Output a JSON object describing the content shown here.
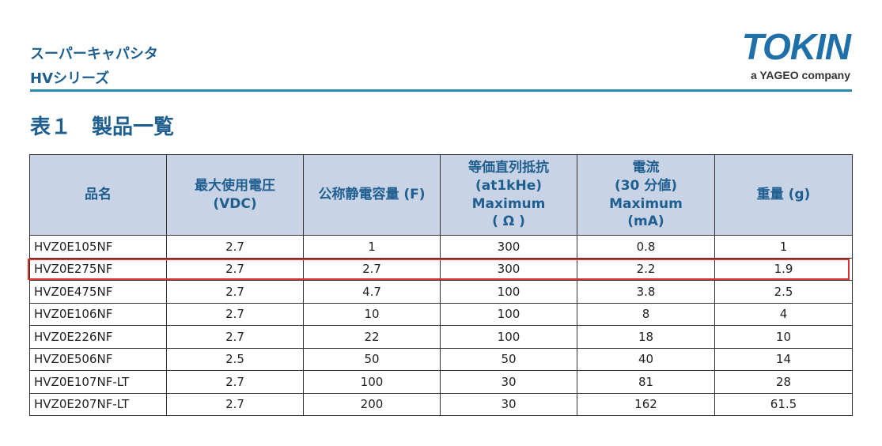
{
  "header": {
    "category": "スーパーキャパシタ",
    "series": "HVシリーズ",
    "logo_main": "TOKIN",
    "logo_sub": "a YAGEO company"
  },
  "table_title": "表１　製品一覧",
  "table": {
    "columns": [
      "品名",
      "最大使用電圧\n(VDC)",
      "公称静電容量 (F)",
      "等価直列抵抗\n(at1kHe)\nMaximum\n( Ω )",
      "電流\n(30 分値)\nMaximum\n(mA)",
      "重量 (g)"
    ],
    "rows": [
      [
        "HVZ0E105NF",
        "2.7",
        "1",
        "300",
        "0.8",
        "1"
      ],
      [
        "HVZ0E275NF",
        "2.7",
        "2.7",
        "300",
        "2.2",
        "1.9"
      ],
      [
        "HVZ0E475NF",
        "2.7",
        "4.7",
        "100",
        "3.8",
        "2.5"
      ],
      [
        "HVZ0E106NF",
        "2.7",
        "10",
        "100",
        "8",
        "4"
      ],
      [
        "HVZ0E226NF",
        "2.7",
        "22",
        "100",
        "18",
        "10"
      ],
      [
        "HVZ0E506NF",
        "2.5",
        "50",
        "50",
        "40",
        "14"
      ],
      [
        "HVZ0E107NF-LT",
        "2.7",
        "100",
        "30",
        "81",
        "28"
      ],
      [
        "HVZ0E207NF-LT",
        "2.7",
        "200",
        "30",
        "162",
        "61.5"
      ]
    ],
    "highlighted_row": 1,
    "header_bg": "#c9d3e6",
    "highlight_color": "#d9302a"
  }
}
